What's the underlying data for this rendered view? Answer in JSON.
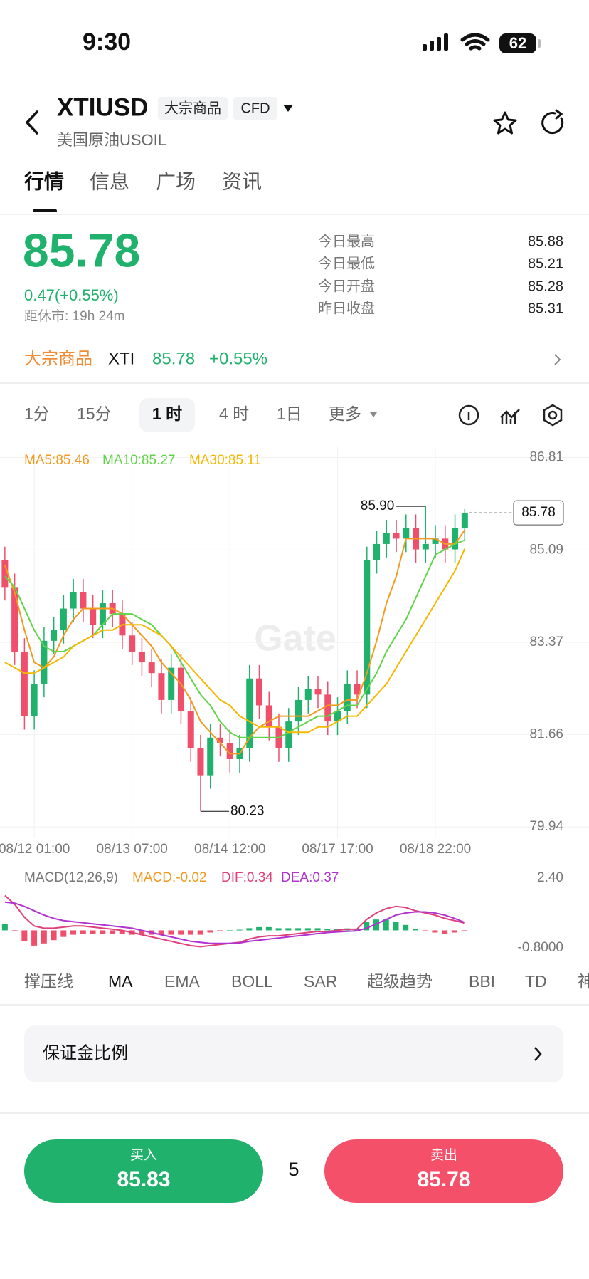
{
  "status": {
    "time": "9:30",
    "battery": "62"
  },
  "header": {
    "symbol": "XTIUSD",
    "tag": "大宗商品",
    "market": "CFD",
    "subtitle": "美国原油USOIL"
  },
  "tabs": [
    "行情",
    "信息",
    "广场",
    "资讯"
  ],
  "quote": {
    "price": "85.78",
    "change": "0.47(+0.55%)",
    "timer": "距休市: 19h 24m",
    "stats": [
      {
        "label": "今日最高",
        "value": "85.88"
      },
      {
        "label": "今日最低",
        "value": "85.21"
      },
      {
        "label": "今日开盘",
        "value": "85.28"
      },
      {
        "label": "昨日收盘",
        "value": "85.31"
      }
    ]
  },
  "related": {
    "category": "大宗商品",
    "symbol": "XTI",
    "price": "85.78",
    "change": "+0.55%"
  },
  "intervals": [
    "1分",
    "15分",
    "1 时",
    "4 时",
    "1日",
    "更多"
  ],
  "chart_data": [
    {
      "type": "candlestick",
      "watermark": "Gate",
      "grid": true,
      "up_color": "#20b26c",
      "down_color": "#ef4f6a",
      "open": [
        84.9,
        84.4,
        83.2,
        82.0,
        82.6,
        83.4,
        83.6,
        84.0,
        84.3,
        84.0,
        83.7,
        84.1,
        83.9,
        83.5,
        83.2,
        83.0,
        82.8,
        82.3,
        82.9,
        82.1,
        81.4,
        80.9,
        81.6,
        81.5,
        81.2,
        81.4,
        82.7,
        82.2,
        81.8,
        81.4,
        81.9,
        82.3,
        82.5,
        82.4,
        81.9,
        82.1,
        82.6,
        82.4,
        84.9,
        85.2,
        85.4,
        85.3,
        85.5,
        85.1,
        85.2,
        85.3,
        85.1,
        85.5
      ],
      "high": [
        85.15,
        84.65,
        83.45,
        82.85,
        83.65,
        83.85,
        84.25,
        84.55,
        84.55,
        84.25,
        84.35,
        84.35,
        84.15,
        83.75,
        83.45,
        83.25,
        83.05,
        83.15,
        83.15,
        82.35,
        81.65,
        81.85,
        81.85,
        81.75,
        81.65,
        82.95,
        82.95,
        82.45,
        82.05,
        82.15,
        82.55,
        82.75,
        82.75,
        82.65,
        82.35,
        82.85,
        82.85,
        85.15,
        85.45,
        85.65,
        85.65,
        85.75,
        85.75,
        85.9,
        85.55,
        85.55,
        85.75,
        85.85
      ],
      "low": [
        84.15,
        82.95,
        81.75,
        81.75,
        82.35,
        83.15,
        83.35,
        83.75,
        83.75,
        83.45,
        83.45,
        83.65,
        83.25,
        82.95,
        82.75,
        82.55,
        82.05,
        82.05,
        81.85,
        81.15,
        80.23,
        80.65,
        81.25,
        80.95,
        80.95,
        81.15,
        81.95,
        81.55,
        81.15,
        81.15,
        81.65,
        82.05,
        82.15,
        81.65,
        81.65,
        81.85,
        82.15,
        82.15,
        84.65,
        84.95,
        85.05,
        85.05,
        84.85,
        84.85,
        84.95,
        84.85,
        84.85,
        85.25
      ],
      "close": [
        84.4,
        83.2,
        82.0,
        82.6,
        83.4,
        83.6,
        84.0,
        84.3,
        84.0,
        83.7,
        84.1,
        83.9,
        83.5,
        83.2,
        83.0,
        82.8,
        82.3,
        82.9,
        82.1,
        81.4,
        80.9,
        81.6,
        81.5,
        81.2,
        81.4,
        82.7,
        82.2,
        81.8,
        81.4,
        81.9,
        82.3,
        82.5,
        82.4,
        81.9,
        82.1,
        82.6,
        82.4,
        84.9,
        85.2,
        85.4,
        85.3,
        85.5,
        85.1,
        85.2,
        85.3,
        85.1,
        85.5,
        85.78
      ],
      "series": [
        {
          "name": "MA5:85.46",
          "color": "#f39a1e",
          "values": [
            84.8,
            84.3,
            83.6,
            83.0,
            82.9,
            83.1,
            83.5,
            83.8,
            84.0,
            84.0,
            84.0,
            84.0,
            83.9,
            83.7,
            83.5,
            83.3,
            83.0,
            82.8,
            82.6,
            82.3,
            81.9,
            81.7,
            81.5,
            81.3,
            81.3,
            81.6,
            81.8,
            81.9,
            82.0,
            82.0,
            82.0,
            82.0,
            82.1,
            82.2,
            82.2,
            82.3,
            82.3,
            82.8,
            83.4,
            84.1,
            84.6,
            85.3,
            85.3,
            85.3,
            85.3,
            85.2,
            85.2,
            85.46
          ]
        },
        {
          "name": "MA10:85.27",
          "color": "#62d44a",
          "values": [
            84.6,
            84.4,
            84.0,
            83.6,
            83.3,
            83.2,
            83.2,
            83.3,
            83.4,
            83.5,
            83.7,
            83.9,
            83.9,
            83.9,
            83.8,
            83.7,
            83.5,
            83.3,
            83.0,
            82.7,
            82.4,
            82.2,
            81.9,
            81.7,
            81.6,
            81.6,
            81.6,
            81.6,
            81.6,
            81.7,
            81.8,
            81.9,
            82.0,
            82.0,
            82.1,
            82.2,
            82.2,
            82.5,
            82.8,
            83.2,
            83.5,
            83.8,
            84.2,
            84.6,
            85.0,
            85.1,
            85.2,
            85.27
          ]
        },
        {
          "name": "MA30:85.11",
          "color": "#f5b800",
          "values": [
            83.0,
            82.9,
            82.8,
            82.8,
            82.9,
            83.0,
            83.1,
            83.3,
            83.4,
            83.5,
            83.6,
            83.6,
            83.7,
            83.7,
            83.7,
            83.6,
            83.5,
            83.3,
            83.1,
            82.9,
            82.7,
            82.5,
            82.3,
            82.2,
            82.0,
            81.9,
            81.8,
            81.8,
            81.8,
            81.7,
            81.7,
            81.7,
            81.8,
            81.8,
            81.9,
            82.0,
            82.0,
            82.2,
            82.4,
            82.6,
            82.9,
            83.2,
            83.5,
            83.8,
            84.1,
            84.4,
            84.7,
            85.11
          ]
        }
      ],
      "extreme_labels": [
        "85.90",
        "80.23"
      ],
      "ylim": [
        79.73,
        87.0
      ],
      "yticks": [
        86.81,
        85.09,
        83.37,
        81.66,
        79.94
      ],
      "xlim": [
        -0.5,
        59.7
      ],
      "xticks": [
        {
          "value": 3,
          "label": "08/12 01:00"
        },
        {
          "value": 13,
          "label": "08/13 07:00"
        },
        {
          "value": 23,
          "label": "08/14 12:00"
        },
        {
          "value": 34,
          "label": "08/17 17:00"
        },
        {
          "value": 44,
          "label": "08/18 22:00"
        }
      ]
    },
    {
      "type": "macd",
      "title": "MACD(12,26,9)",
      "series": [
        {
          "name": "MACD:-0.02",
          "color": "#f39a1e",
          "values": [
            0.3,
            -0.05,
            -0.5,
            -0.7,
            -0.6,
            -0.45,
            -0.3,
            -0.2,
            -0.15,
            -0.15,
            -0.15,
            -0.15,
            -0.15,
            -0.2,
            -0.2,
            -0.2,
            -0.2,
            -0.2,
            -0.2,
            -0.2,
            -0.2,
            -0.1,
            -0.05,
            0,
            0.03,
            0.1,
            0.15,
            0.15,
            0.1,
            0.1,
            0.1,
            0.1,
            0.1,
            0.05,
            0.07,
            0.09,
            0.07,
            0.4,
            0.5,
            0.5,
            0.4,
            0.25,
            0.05,
            -0.05,
            -0.1,
            -0.15,
            -0.1,
            -0.02
          ]
        },
        {
          "name": "DIF:0.34",
          "color": "#e0407a",
          "values": [
            1.6,
            1.2,
            0.6,
            0.2,
            0.1,
            0.1,
            0.15,
            0.2,
            0.2,
            0.15,
            0.1,
            0.05,
            0.0,
            -0.1,
            -0.2,
            -0.3,
            -0.4,
            -0.5,
            -0.6,
            -0.7,
            -0.75,
            -0.7,
            -0.65,
            -0.6,
            -0.55,
            -0.4,
            -0.3,
            -0.25,
            -0.25,
            -0.2,
            -0.15,
            -0.1,
            -0.05,
            -0.05,
            0.0,
            0.05,
            0.05,
            0.5,
            0.8,
            1.0,
            1.1,
            1.05,
            0.9,
            0.8,
            0.7,
            0.55,
            0.45,
            0.34
          ]
        },
        {
          "name": "DEA:0.37",
          "color": "#b033d0",
          "values": [
            1.3,
            1.25,
            1.1,
            0.9,
            0.7,
            0.55,
            0.45,
            0.4,
            0.35,
            0.3,
            0.25,
            0.2,
            0.15,
            0.1,
            0.0,
            -0.1,
            -0.2,
            -0.3,
            -0.4,
            -0.5,
            -0.55,
            -0.6,
            -0.6,
            -0.6,
            -0.58,
            -0.5,
            -0.45,
            -0.4,
            -0.35,
            -0.3,
            -0.25,
            -0.2,
            -0.15,
            -0.1,
            -0.07,
            -0.04,
            -0.02,
            0.1,
            0.3,
            0.5,
            0.7,
            0.8,
            0.85,
            0.85,
            0.8,
            0.7,
            0.55,
            0.37
          ]
        }
      ],
      "ylim": [
        -1.26,
        2.99
      ],
      "yticks": [
        {
          "value": 2.4,
          "label": "2.40"
        },
        {
          "value": -0.8,
          "label": "-0.8000"
        }
      ]
    }
  ],
  "indicators": [
    "撑压线",
    "MA",
    "EMA",
    "BOLL",
    "SAR",
    "超级趋势",
    "BBI",
    "TD",
    "神"
  ],
  "margin": "保证金比例",
  "buy": {
    "label": "买入",
    "price": "85.83"
  },
  "quantity": "5",
  "sell": {
    "label": "卖出",
    "price": "85.78"
  }
}
